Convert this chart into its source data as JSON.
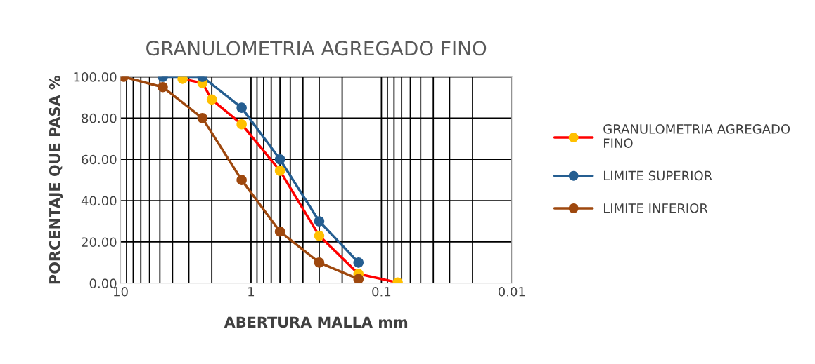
{
  "chart_data": {
    "type": "line",
    "title": "GRANULOMETRIA AGREGADO FINO",
    "xlabel": "ABERTURA MALLA mm",
    "ylabel": "PORCENTAJE QUE PASA %",
    "log": "x",
    "xlim": [
      10,
      0.01
    ],
    "xticks": [
      10,
      1,
      0.1,
      0.01
    ],
    "ylim": [
      0,
      100
    ],
    "yticks": [
      {
        "value": 0,
        "label": "0.00"
      },
      {
        "value": 20,
        "label": "20.00"
      },
      {
        "value": 40,
        "label": "40.00"
      },
      {
        "value": 60,
        "label": "60.00"
      },
      {
        "value": 80,
        "label": "80.00"
      },
      {
        "value": 100,
        "label": "100.00"
      }
    ],
    "grid": true,
    "legend": "right",
    "marker": "circle",
    "line_style": "solid",
    "series": [
      {
        "name": "GRANULOMETRIA AGREGADO FINO",
        "color": "#ff0000",
        "colors": [
          "#ffc000",
          "#ffc000",
          "#ffc000",
          "#ffc000",
          "#ffc000",
          "#ffc000",
          "#ffc000",
          "#ffc000"
        ],
        "x": [
          3.35,
          2.36,
          2.0,
          1.18,
          0.6,
          0.3,
          0.15,
          0.075
        ],
        "values": [
          99,
          97,
          89,
          77,
          54.5,
          23,
          4.5,
          0.3
        ]
      },
      {
        "name": "LIMITE SUPERIOR",
        "color": "#255e91",
        "x": [
          4.75,
          2.36,
          1.18,
          0.6,
          0.3,
          0.15
        ],
        "values": [
          100,
          100,
          85,
          60,
          30,
          10
        ]
      },
      {
        "name": "LIMITE INFERIOR",
        "color": "#9e480e",
        "x": [
          9.5,
          4.75,
          2.36,
          1.18,
          0.6,
          0.3,
          0.15
        ],
        "values": [
          100,
          95,
          80,
          50,
          25,
          10,
          2
        ]
      }
    ]
  }
}
